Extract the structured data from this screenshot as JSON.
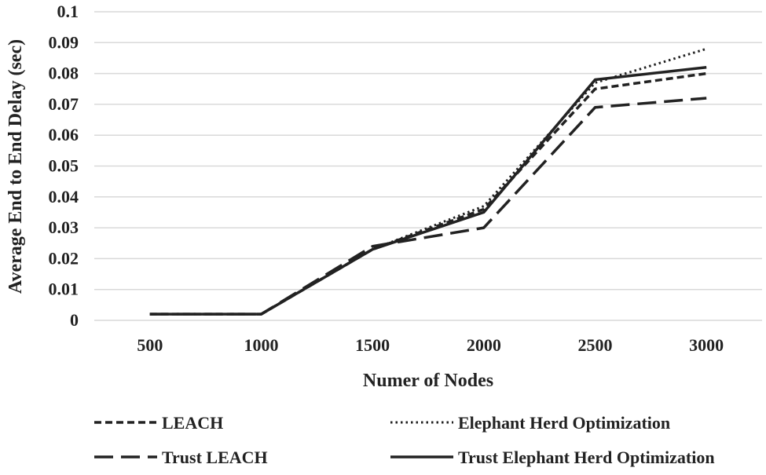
{
  "chart_data": {
    "type": "line",
    "x": [
      500,
      1000,
      1500,
      2000,
      2500,
      3000
    ],
    "xlabel": "Numer of Nodes",
    "ylabel": "Average End to End Delay (sec)",
    "ylim": [
      0,
      0.1
    ],
    "yticks": [
      "0",
      "0.01",
      "0.02",
      "0.03",
      "0.04",
      "0.05",
      "0.06",
      "0.07",
      "0.08",
      "0.09",
      "0.1"
    ],
    "xticks": [
      "500",
      "1000",
      "1500",
      "2000",
      "2500",
      "3000"
    ],
    "grid": "horizontal",
    "legend_position": "bottom",
    "series": [
      {
        "name": "LEACH",
        "style": "short-dash",
        "color": "#222222",
        "values": [
          0.002,
          0.002,
          0.023,
          0.036,
          0.075,
          0.08
        ]
      },
      {
        "name": "Elephant Herd Optimization",
        "style": "dotted",
        "color": "#222222",
        "values": [
          0.002,
          0.002,
          0.023,
          0.037,
          0.077,
          0.088
        ]
      },
      {
        "name": "Trust LEACH",
        "style": "long-dash",
        "color": "#222222",
        "values": [
          0.002,
          0.002,
          0.024,
          0.03,
          0.069,
          0.072
        ]
      },
      {
        "name": "Trust Elephant Herd Optimization",
        "style": "solid",
        "color": "#222222",
        "values": [
          0.002,
          0.002,
          0.023,
          0.035,
          0.078,
          0.082
        ]
      }
    ]
  }
}
